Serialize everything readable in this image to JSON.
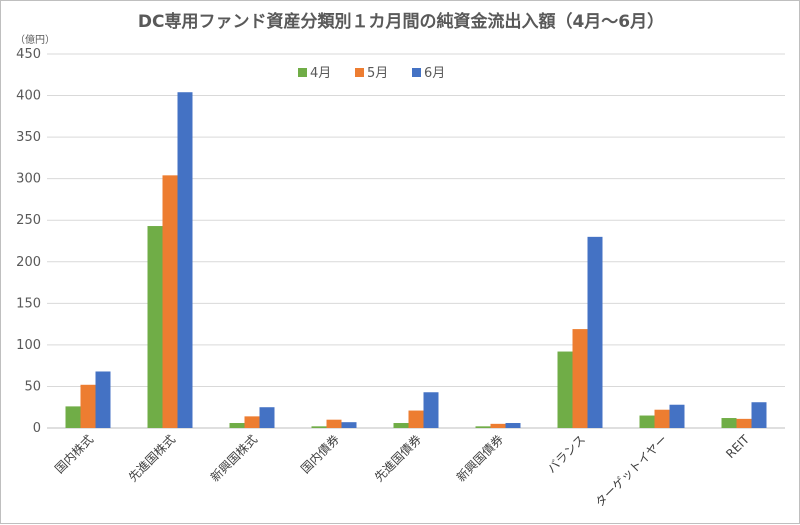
{
  "chart_data": {
    "type": "bar",
    "title": "DC専用ファンド資産分類別１カ月間の純資金流出入額（4月～6月）",
    "unit_label": "（億円）",
    "xlabel": "",
    "ylabel": "",
    "ylim": [
      0,
      450
    ],
    "yticks": [
      0,
      50,
      100,
      150,
      200,
      250,
      300,
      350,
      400,
      450
    ],
    "grid": true,
    "legend_position": "top-center",
    "categories": [
      "国内株式",
      "先進国株式",
      "新興国株式",
      "国内債券",
      "先進国債券",
      "新興国債券",
      "バランス",
      "ターゲットイヤー",
      "REIT"
    ],
    "series": [
      {
        "name": "4月",
        "color": "#70ad47",
        "values": [
          26,
          243,
          6,
          2,
          6,
          2,
          92,
          15,
          12
        ]
      },
      {
        "name": "5月",
        "color": "#ed7d31",
        "values": [
          52,
          304,
          14,
          10,
          21,
          5,
          119,
          22,
          11
        ]
      },
      {
        "name": "6月",
        "color": "#4472c4",
        "values": [
          68,
          404,
          25,
          7,
          43,
          6,
          230,
          28,
          31
        ]
      }
    ]
  }
}
